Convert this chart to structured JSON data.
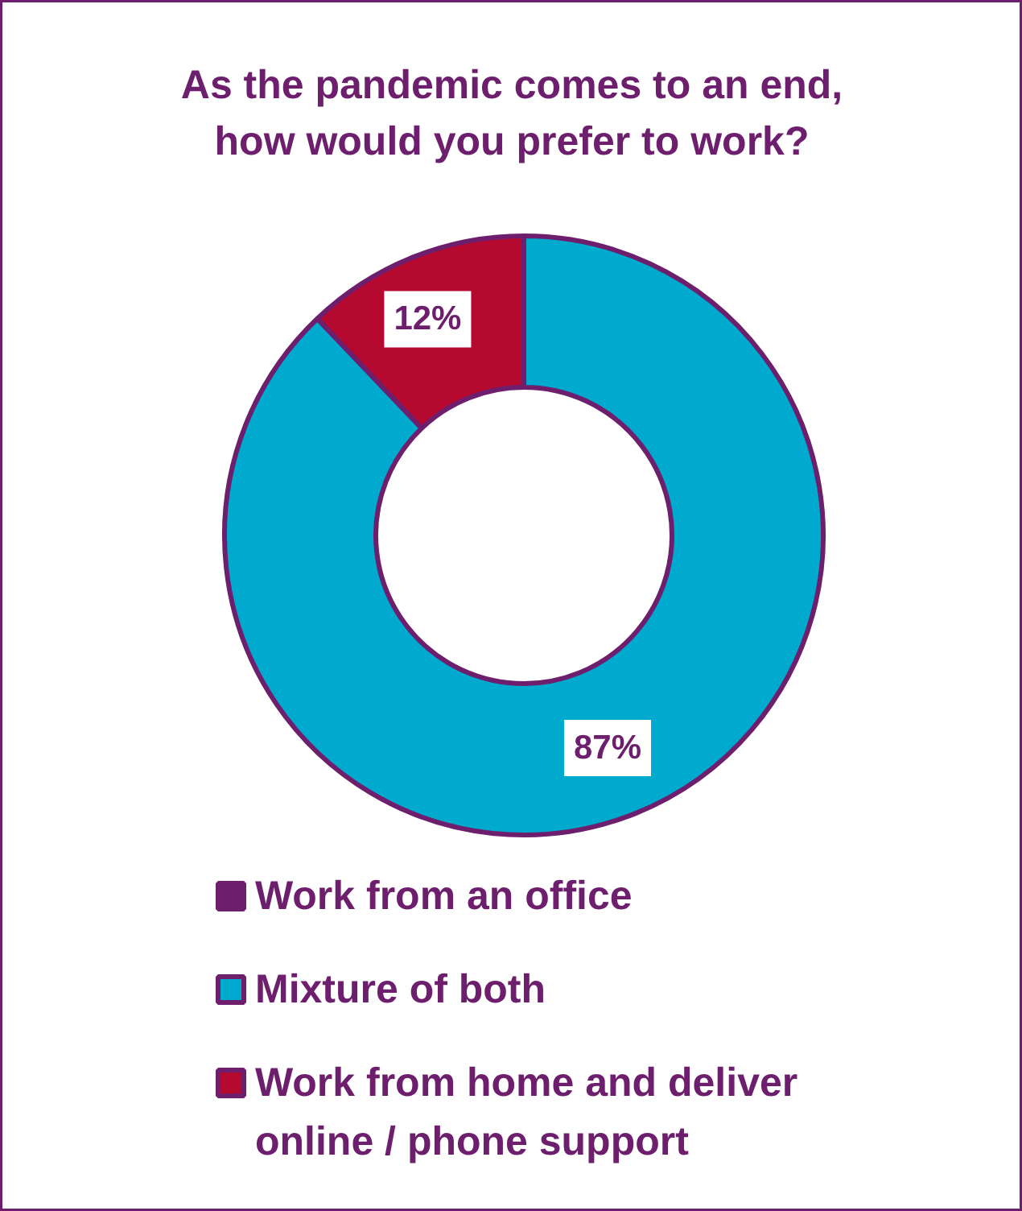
{
  "chart_data": {
    "type": "donut",
    "title": "As the pandemic comes to an end, how would you prefer to work?",
    "categories": [
      "Work from an office",
      "Mixture of both",
      "Work from home and deliver online / phone support"
    ],
    "values": [
      null,
      87,
      12
    ],
    "colors": [
      "#6d1f6e",
      "#00a9ce",
      "#b5092f"
    ],
    "value_labels": [
      null,
      "87%",
      "12%"
    ],
    "legend": "bottom"
  }
}
